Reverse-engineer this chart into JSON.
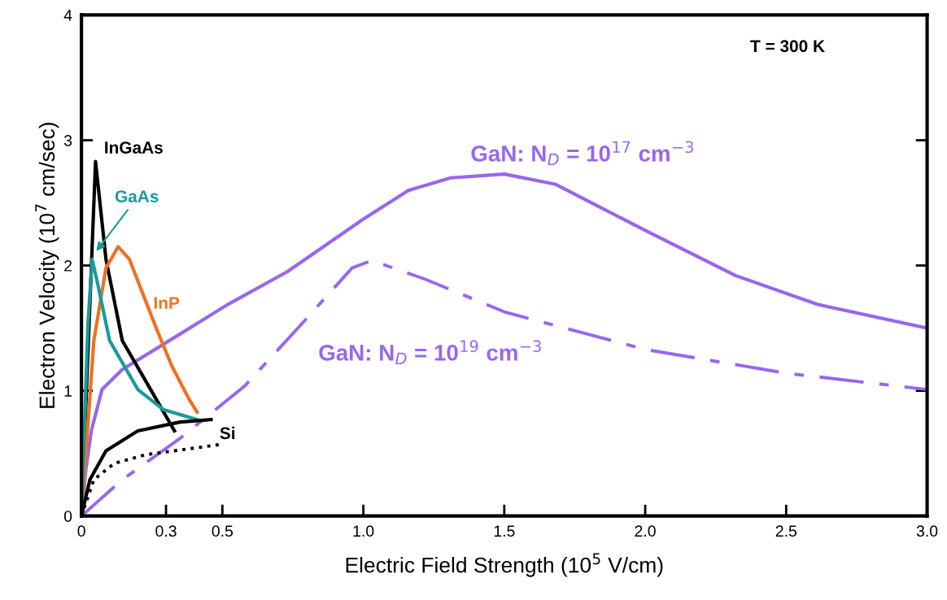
{
  "chart_data": {
    "type": "line",
    "xlabel": "Electric Field Strength (10$^{5}$ V/cm)",
    "ylabel": "Electron Velocity (10$^{7}$ cm/sec)",
    "xlim": [
      0,
      3.0
    ],
    "ylim": [
      0,
      4
    ],
    "xticks": [
      0,
      0.3,
      0.5,
      {
        "value": 1.0,
        "label": "1.0"
      },
      1.5,
      {
        "value": 2.0,
        "label": "2.0"
      },
      2.5,
      {
        "value": 3.0,
        "label": "3.0"
      }
    ],
    "yticks": [
      0,
      1,
      2,
      3,
      4
    ],
    "grid": false,
    "legend": false,
    "series": [
      {
        "name": "GaN: N$_{D}$ = 10$^{17}$ cm$^{−3}$",
        "color": "#9966ee",
        "line_style": "solid",
        "x": [
          0,
          0.015,
          0.035,
          0.073,
          0.145,
          0.29,
          0.52,
          0.73,
          1.0,
          1.16,
          1.31,
          1.5,
          1.68,
          2.0,
          2.32,
          2.61,
          3.0
        ],
        "values": [
          0,
          0.36,
          0.68,
          1.01,
          1.17,
          1.37,
          1.69,
          1.95,
          2.37,
          2.6,
          2.7,
          2.73,
          2.65,
          2.28,
          1.92,
          1.69,
          1.5
        ]
      },
      {
        "name": "GaN: N$_{D}$ = 10$^{19}$ cm$^{−3}$",
        "color": "#9966ee",
        "line_style": "dashdot",
        "x": [
          0,
          0.145,
          0.35,
          0.58,
          0.78,
          0.96,
          1.03,
          1.22,
          1.5,
          2.0,
          2.5,
          3.0
        ],
        "values": [
          0,
          0.29,
          0.62,
          1.04,
          1.53,
          1.98,
          2.04,
          1.89,
          1.63,
          1.33,
          1.14,
          1.01
        ]
      },
      {
        "name": "InGaAs",
        "color": "#000000",
        "line_style": "solid",
        "x": [
          0,
          0.05,
          0.087,
          0.145,
          0.23,
          0.33
        ],
        "values": [
          0,
          2.83,
          2.05,
          1.4,
          1.07,
          0.68
        ]
      },
      {
        "name": "InP",
        "color": "#f07020",
        "line_style": "solid",
        "x": [
          0,
          0.044,
          0.087,
          0.13,
          0.17,
          0.26,
          0.32,
          0.38,
          0.41
        ],
        "values": [
          0,
          1.4,
          1.98,
          2.15,
          2.05,
          1.53,
          1.2,
          0.94,
          0.83
        ]
      },
      {
        "name": "GaAs",
        "color": "#1a9a9a",
        "line_style": "solid",
        "x": [
          0,
          0.023,
          0.038,
          0.058,
          0.1,
          0.2,
          0.29,
          0.41
        ],
        "values": [
          0,
          1.53,
          2.05,
          1.85,
          1.4,
          1.01,
          0.85,
          0.77
        ]
      },
      {
        "color": "#000000",
        "line_style": "solid",
        "x": [
          0,
          0.03,
          0.087,
          0.2,
          0.35,
          0.46
        ],
        "values": [
          0,
          0.29,
          0.52,
          0.68,
          0.75,
          0.77
        ]
      },
      {
        "name": "Si",
        "color": "#000000",
        "line_style": "dotted",
        "x": [
          0,
          0.044,
          0.116,
          0.23,
          0.49
        ],
        "values": [
          0,
          0.29,
          0.42,
          0.49,
          0.57
        ]
      }
    ],
    "annotations": [
      "T = 300 K"
    ]
  }
}
